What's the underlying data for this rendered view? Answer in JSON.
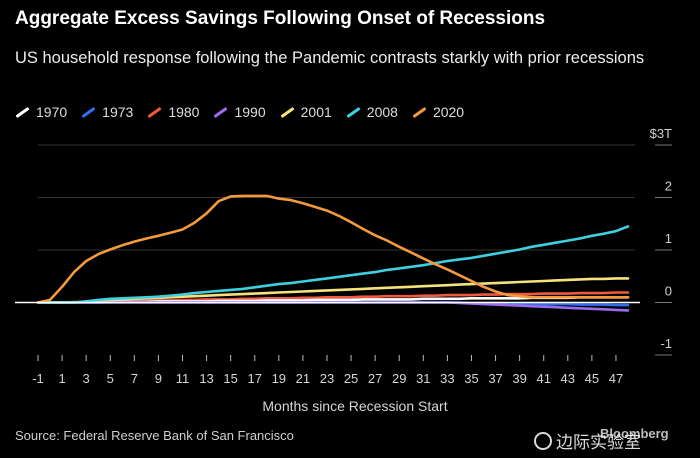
{
  "chart_data": {
    "type": "line",
    "title": "Aggregate Excess Savings Following Onset of Recessions",
    "subtitle": "US household response following the Pandemic contrasts starkly with prior recessions",
    "xlabel": "Months since Recession Start",
    "ylabel": "",
    "x_tick_labels": [
      "-1",
      "1",
      "3",
      "5",
      "7",
      "9",
      "11",
      "13",
      "15",
      "17",
      "19",
      "21",
      "23",
      "25",
      "27",
      "29",
      "31",
      "33",
      "35",
      "37",
      "39",
      "41",
      "43",
      "45",
      "47"
    ],
    "y_tick_labels": [
      "$3T",
      "2",
      "1",
      "0",
      "-1"
    ],
    "xlim": [
      -1,
      48
    ],
    "ylim": [
      -1,
      3
    ],
    "grid": true,
    "legend_position": "top-left",
    "x": [
      -1,
      0,
      1,
      2,
      3,
      4,
      5,
      6,
      7,
      8,
      9,
      10,
      11,
      12,
      13,
      14,
      15,
      16,
      17,
      18,
      19,
      20,
      21,
      22,
      23,
      24,
      25,
      26,
      27,
      28,
      29,
      30,
      31,
      32,
      33,
      34,
      35,
      36,
      37,
      38,
      39,
      40,
      41,
      42,
      43,
      44,
      45,
      46,
      47,
      48
    ],
    "series": [
      {
        "name": "1970",
        "color": "#ffffff",
        "values": [
          0,
          0,
          0,
          0,
          0,
          0,
          0.01,
          0.01,
          0.01,
          0.01,
          0.02,
          0.02,
          0.02,
          0.02,
          0.02,
          0.03,
          0.03,
          0.03,
          0.03,
          0.04,
          0.04,
          0.04,
          0.04,
          0.05,
          0.05,
          0.05,
          0.05,
          0.06,
          0.06,
          0.06,
          0.06,
          0.06,
          0.07,
          0.07,
          0.07,
          0.07,
          0.08,
          0.08,
          0.08,
          0.08,
          0.08,
          0.09,
          0.09,
          0.09,
          0.09,
          0.1,
          0.1,
          0.1,
          0.1,
          0.1
        ]
      },
      {
        "name": "1973",
        "color": "#2f6ff0",
        "values": [
          0,
          0,
          0,
          0,
          0,
          0,
          0,
          0,
          0,
          0,
          0,
          0,
          0,
          0,
          0,
          0,
          0,
          0,
          0,
          0,
          0,
          0,
          0,
          0,
          0,
          0,
          0,
          0,
          0,
          0,
          0,
          0,
          0,
          0,
          0,
          0,
          -0.01,
          -0.01,
          -0.01,
          -0.02,
          -0.02,
          -0.02,
          -0.03,
          -0.03,
          -0.03,
          -0.04,
          -0.04,
          -0.04,
          -0.05,
          -0.05
        ]
      },
      {
        "name": "1980",
        "color": "#f05a3c",
        "values": [
          0,
          0,
          0,
          0.01,
          0.01,
          0.02,
          0.02,
          0.03,
          0.03,
          0.03,
          0.04,
          0.04,
          0.05,
          0.05,
          0.06,
          0.06,
          0.06,
          0.07,
          0.07,
          0.08,
          0.08,
          0.08,
          0.09,
          0.09,
          0.1,
          0.1,
          0.1,
          0.11,
          0.11,
          0.12,
          0.12,
          0.12,
          0.13,
          0.13,
          0.14,
          0.14,
          0.14,
          0.15,
          0.15,
          0.16,
          0.16,
          0.16,
          0.17,
          0.17,
          0.17,
          0.18,
          0.18,
          0.18,
          0.19,
          0.19
        ]
      },
      {
        "name": "1990",
        "color": "#9b6cf0",
        "values": [
          0,
          0,
          0,
          0,
          0,
          0,
          0,
          0,
          0,
          0,
          0,
          0,
          0,
          0,
          0,
          0,
          0,
          0,
          0,
          0,
          0,
          0,
          0,
          0,
          0,
          0,
          0,
          0,
          0,
          0,
          0,
          0,
          0,
          0,
          0,
          -0.01,
          -0.02,
          -0.03,
          -0.04,
          -0.05,
          -0.06,
          -0.07,
          -0.08,
          -0.09,
          -0.1,
          -0.11,
          -0.12,
          -0.13,
          -0.14,
          -0.15
        ]
      },
      {
        "name": "2001",
        "color": "#f5e27a",
        "values": [
          0,
          0,
          0,
          0,
          0.02,
          0.04,
          0.05,
          0.06,
          0.07,
          0.08,
          0.09,
          0.1,
          0.11,
          0.12,
          0.13,
          0.14,
          0.15,
          0.16,
          0.17,
          0.18,
          0.19,
          0.2,
          0.21,
          0.22,
          0.23,
          0.24,
          0.25,
          0.26,
          0.27,
          0.28,
          0.29,
          0.3,
          0.31,
          0.32,
          0.33,
          0.34,
          0.35,
          0.36,
          0.37,
          0.38,
          0.39,
          0.4,
          0.41,
          0.42,
          0.43,
          0.44,
          0.45,
          0.45,
          0.46,
          0.46
        ]
      },
      {
        "name": "2008",
        "color": "#3ed0e0",
        "values": [
          0,
          0,
          0,
          0,
          0.02,
          0.05,
          0.07,
          0.08,
          0.09,
          0.1,
          0.11,
          0.13,
          0.15,
          0.18,
          0.2,
          0.22,
          0.24,
          0.26,
          0.29,
          0.32,
          0.35,
          0.37,
          0.4,
          0.43,
          0.46,
          0.49,
          0.52,
          0.55,
          0.58,
          0.62,
          0.65,
          0.68,
          0.71,
          0.75,
          0.79,
          0.82,
          0.85,
          0.89,
          0.93,
          0.97,
          1.01,
          1.06,
          1.1,
          1.14,
          1.18,
          1.22,
          1.27,
          1.31,
          1.36,
          1.45
        ]
      },
      {
        "name": "2020",
        "color": "#f39a3d",
        "values": [
          0,
          0.05,
          0.3,
          0.58,
          0.79,
          0.92,
          1.01,
          1.09,
          1.16,
          1.22,
          1.27,
          1.33,
          1.39,
          1.52,
          1.7,
          1.93,
          2.02,
          2.03,
          2.03,
          2.03,
          1.98,
          1.95,
          1.89,
          1.82,
          1.75,
          1.65,
          1.53,
          1.4,
          1.28,
          1.18,
          1.06,
          0.95,
          0.84,
          0.73,
          0.63,
          0.52,
          0.41,
          0.3,
          0.21,
          0.14,
          0.12,
          0.1,
          0.1,
          0.1,
          0.1,
          0.1,
          0.1,
          0.1,
          0.1,
          0.1
        ]
      }
    ]
  },
  "footer": {
    "source": "Source: Federal Reserve Bank of San Francisco",
    "brand": "Bloomberg",
    "watermark": "边际实验室"
  }
}
